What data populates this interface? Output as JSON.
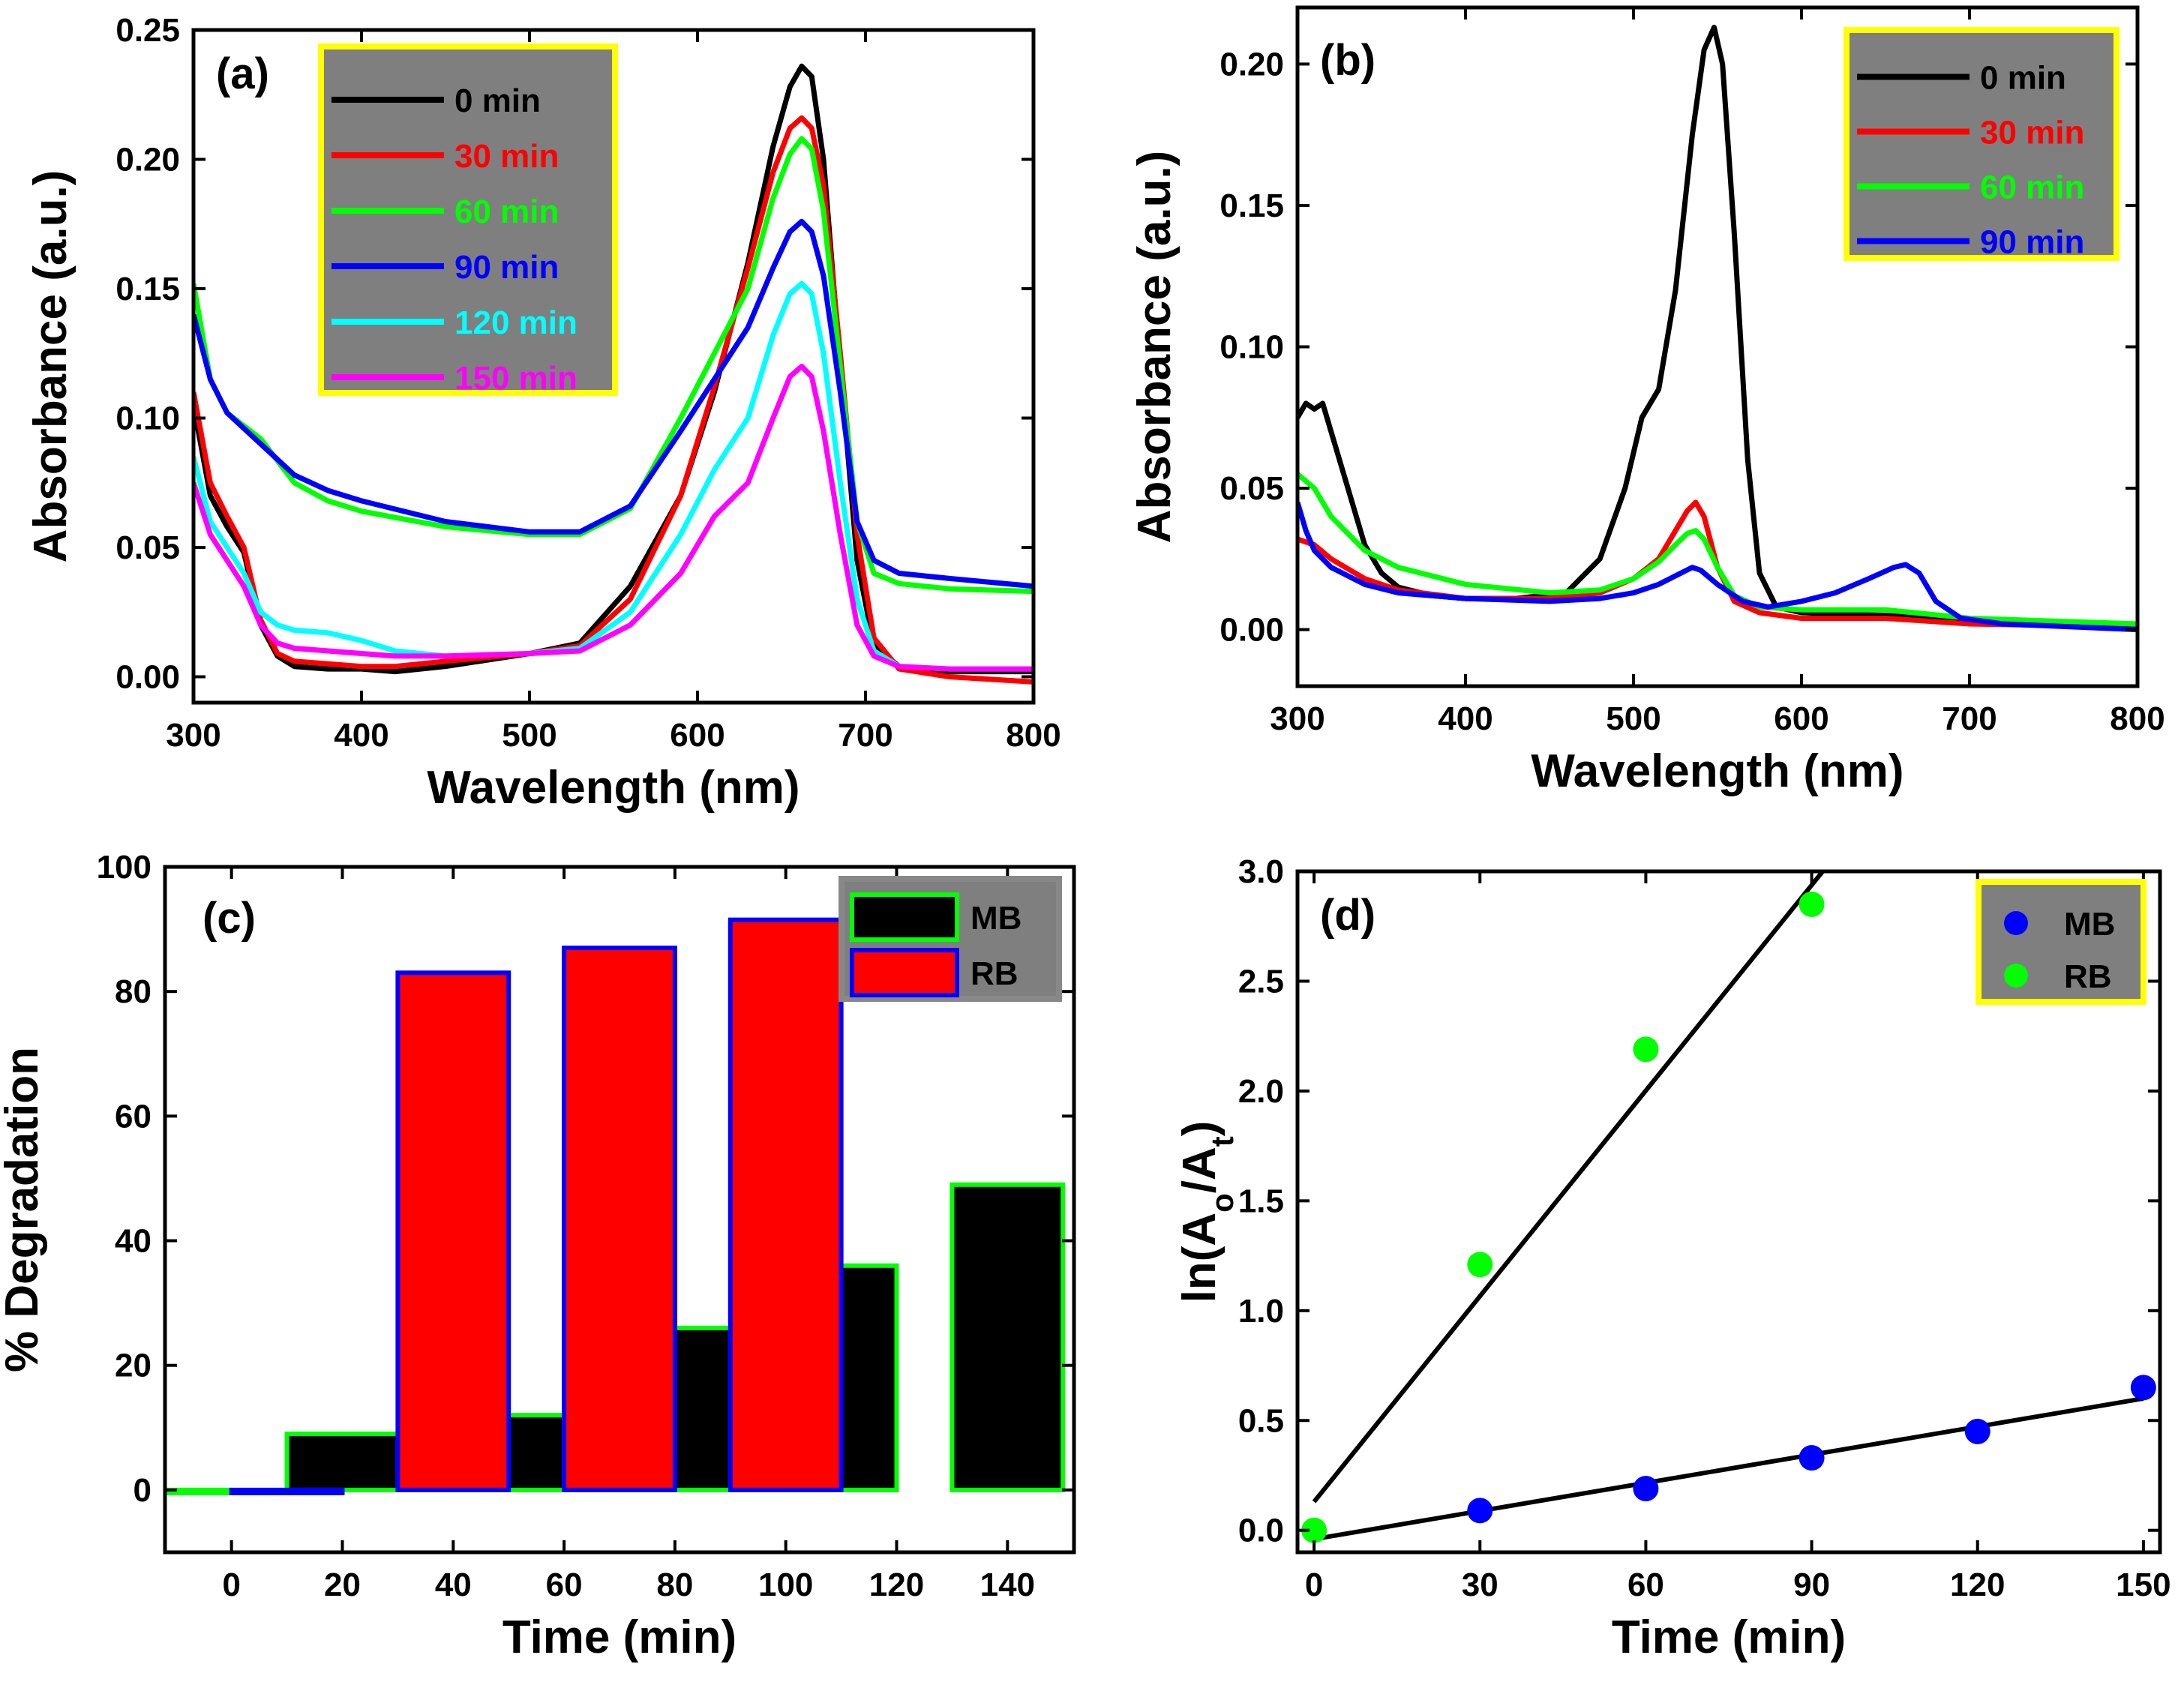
{
  "chart_data": [
    {
      "panel": "(a)",
      "type": "line",
      "xlabel": "Wavelength (nm)",
      "ylabel": "Absorbance (a.u.)",
      "xlim": [
        300,
        800
      ],
      "ylim": [
        -0.01,
        0.25
      ],
      "xticks": [
        "300",
        "400",
        "500",
        "600",
        "700",
        "800"
      ],
      "yticks": [
        "0.00",
        "0.05",
        "0.10",
        "0.15",
        "0.20",
        "0.25"
      ],
      "xtick_values": [
        300,
        400,
        500,
        600,
        700,
        800
      ],
      "ytick_values": [
        0,
        0.05,
        0.1,
        0.15,
        0.2,
        0.25
      ],
      "legend": {
        "position": "top-left",
        "background": "#7f7f7f",
        "border": "#ffff00"
      },
      "series": [
        {
          "name": "0 min",
          "color": "#000000",
          "x": [
            300,
            310,
            320,
            330,
            340,
            350,
            360,
            380,
            400,
            420,
            450,
            500,
            530,
            560,
            590,
            610,
            630,
            645,
            655,
            662,
            668,
            675,
            685,
            695,
            705,
            720,
            750,
            800
          ],
          "y": [
            0.105,
            0.07,
            0.058,
            0.048,
            0.02,
            0.008,
            0.004,
            0.003,
            0.003,
            0.002,
            0.004,
            0.009,
            0.013,
            0.035,
            0.07,
            0.11,
            0.16,
            0.205,
            0.228,
            0.236,
            0.232,
            0.2,
            0.12,
            0.045,
            0.012,
            0.004,
            0.002,
            0.002
          ]
        },
        {
          "name": "30 min",
          "color": "#ff0000",
          "x": [
            300,
            310,
            320,
            330,
            340,
            350,
            360,
            380,
            400,
            420,
            450,
            500,
            530,
            560,
            590,
            610,
            630,
            645,
            655,
            662,
            668,
            675,
            685,
            695,
            705,
            720,
            750,
            800
          ],
          "y": [
            0.11,
            0.075,
            0.062,
            0.05,
            0.022,
            0.009,
            0.006,
            0.005,
            0.004,
            0.004,
            0.006,
            0.009,
            0.012,
            0.03,
            0.07,
            0.112,
            0.158,
            0.195,
            0.212,
            0.216,
            0.212,
            0.19,
            0.125,
            0.055,
            0.015,
            0.003,
            0.0,
            -0.002
          ]
        },
        {
          "name": "60 min",
          "color": "#00ff00",
          "x": [
            300,
            310,
            320,
            340,
            360,
            380,
            400,
            450,
            500,
            530,
            560,
            590,
            610,
            630,
            645,
            655,
            662,
            668,
            675,
            685,
            695,
            705,
            720,
            750,
            800
          ],
          "y": [
            0.152,
            0.115,
            0.102,
            0.092,
            0.075,
            0.068,
            0.064,
            0.058,
            0.055,
            0.055,
            0.065,
            0.1,
            0.125,
            0.15,
            0.185,
            0.202,
            0.208,
            0.204,
            0.18,
            0.12,
            0.06,
            0.04,
            0.036,
            0.034,
            0.033
          ]
        },
        {
          "name": "90 min",
          "color": "#0000ff",
          "x": [
            300,
            310,
            320,
            340,
            360,
            380,
            400,
            450,
            500,
            530,
            560,
            590,
            610,
            630,
            645,
            655,
            662,
            668,
            675,
            685,
            695,
            705,
            720,
            750,
            800
          ],
          "y": [
            0.14,
            0.115,
            0.102,
            0.09,
            0.078,
            0.072,
            0.068,
            0.06,
            0.056,
            0.056,
            0.066,
            0.095,
            0.115,
            0.135,
            0.158,
            0.172,
            0.176,
            0.172,
            0.155,
            0.11,
            0.06,
            0.045,
            0.04,
            0.038,
            0.035
          ]
        },
        {
          "name": "120 min",
          "color": "#00ffff",
          "x": [
            300,
            310,
            320,
            330,
            340,
            350,
            360,
            380,
            400,
            420,
            450,
            500,
            530,
            560,
            590,
            610,
            630,
            645,
            655,
            662,
            668,
            675,
            685,
            695,
            705,
            720,
            750,
            800
          ],
          "y": [
            0.085,
            0.06,
            0.05,
            0.04,
            0.025,
            0.02,
            0.018,
            0.017,
            0.014,
            0.01,
            0.008,
            0.009,
            0.011,
            0.025,
            0.055,
            0.08,
            0.1,
            0.132,
            0.148,
            0.152,
            0.148,
            0.125,
            0.075,
            0.03,
            0.01,
            0.004,
            0.003,
            0.003
          ]
        },
        {
          "name": "150 min",
          "color": "#ff00ff",
          "x": [
            300,
            310,
            320,
            330,
            340,
            350,
            360,
            380,
            400,
            420,
            450,
            500,
            530,
            560,
            590,
            610,
            630,
            645,
            655,
            662,
            668,
            675,
            685,
            695,
            705,
            720,
            750,
            800
          ],
          "y": [
            0.075,
            0.055,
            0.045,
            0.035,
            0.02,
            0.013,
            0.011,
            0.01,
            0.009,
            0.008,
            0.008,
            0.009,
            0.01,
            0.02,
            0.04,
            0.062,
            0.075,
            0.1,
            0.116,
            0.12,
            0.116,
            0.095,
            0.055,
            0.02,
            0.008,
            0.004,
            0.003,
            0.003
          ]
        }
      ]
    },
    {
      "panel": "(b)",
      "type": "line",
      "xlabel": "Wavelength (nm)",
      "ylabel": "Absorbance (a.u.)",
      "xlim": [
        300,
        800
      ],
      "ylim": [
        -0.02,
        0.22
      ],
      "xticks": [
        "300",
        "400",
        "500",
        "600",
        "700",
        "800"
      ],
      "yticks": [
        "0.00",
        "0.05",
        "0.10",
        "0.15",
        "0.20"
      ],
      "xtick_values": [
        300,
        400,
        500,
        600,
        700,
        800
      ],
      "ytick_values": [
        0,
        0.05,
        0.1,
        0.15,
        0.2
      ],
      "legend": {
        "position": "top-right",
        "background": "#7f7f7f",
        "border": "#ffff00"
      },
      "series": [
        {
          "name": "0 min",
          "color": "#000000",
          "x": [
            300,
            305,
            310,
            315,
            320,
            330,
            340,
            350,
            360,
            380,
            400,
            430,
            460,
            480,
            495,
            505,
            515,
            525,
            535,
            542,
            548,
            553,
            560,
            568,
            575,
            585,
            600,
            650,
            700,
            800
          ],
          "y": [
            0.075,
            0.08,
            0.078,
            0.08,
            0.07,
            0.05,
            0.03,
            0.02,
            0.015,
            0.012,
            0.011,
            0.011,
            0.013,
            0.025,
            0.05,
            0.075,
            0.085,
            0.12,
            0.175,
            0.205,
            0.213,
            0.2,
            0.14,
            0.06,
            0.02,
            0.008,
            0.006,
            0.005,
            0.003,
            0.001
          ]
        },
        {
          "name": "30 min",
          "color": "#ff0000",
          "x": [
            300,
            310,
            320,
            340,
            360,
            400,
            450,
            480,
            500,
            515,
            525,
            532,
            537,
            542,
            550,
            560,
            575,
            600,
            650,
            700,
            800
          ],
          "y": [
            0.032,
            0.03,
            0.025,
            0.018,
            0.014,
            0.011,
            0.011,
            0.013,
            0.018,
            0.025,
            0.035,
            0.042,
            0.045,
            0.04,
            0.022,
            0.01,
            0.006,
            0.004,
            0.004,
            0.002,
            0.001
          ]
        },
        {
          "name": "60 min",
          "color": "#00ff00",
          "x": [
            300,
            310,
            320,
            340,
            360,
            400,
            450,
            480,
            500,
            515,
            525,
            532,
            537,
            542,
            550,
            560,
            575,
            600,
            650,
            700,
            800
          ],
          "y": [
            0.055,
            0.05,
            0.04,
            0.028,
            0.022,
            0.016,
            0.013,
            0.014,
            0.018,
            0.024,
            0.03,
            0.034,
            0.035,
            0.032,
            0.022,
            0.012,
            0.008,
            0.007,
            0.007,
            0.004,
            0.002
          ]
        },
        {
          "name": "90 min",
          "color": "#0000ff",
          "x": [
            300,
            305,
            310,
            320,
            340,
            360,
            400,
            450,
            480,
            500,
            515,
            525,
            535,
            540,
            550,
            565,
            580,
            600,
            620,
            640,
            655,
            662,
            670,
            680,
            695,
            720,
            800
          ],
          "y": [
            0.045,
            0.035,
            0.028,
            0.022,
            0.016,
            0.013,
            0.011,
            0.01,
            0.011,
            0.013,
            0.016,
            0.019,
            0.022,
            0.021,
            0.016,
            0.01,
            0.008,
            0.01,
            0.013,
            0.018,
            0.022,
            0.023,
            0.02,
            0.01,
            0.004,
            0.002,
            0.0
          ]
        }
      ]
    },
    {
      "panel": "(c)",
      "type": "bar",
      "xlabel": "Time (min)",
      "ylabel": "% Degradation",
      "xlim": [
        -12,
        152
      ],
      "ylim": [
        -10,
        100
      ],
      "xticks": [
        "0",
        "20",
        "40",
        "60",
        "80",
        "100",
        "120",
        "140"
      ],
      "yticks": [
        "0",
        "20",
        "40",
        "60",
        "80",
        "100"
      ],
      "xtick_values": [
        0,
        20,
        40,
        60,
        80,
        100,
        120,
        140
      ],
      "ytick_values": [
        0,
        20,
        40,
        60,
        80,
        100
      ],
      "legend": {
        "position": "top-right",
        "background": "#7f7f7f",
        "border": "#888888"
      },
      "series": [
        {
          "name": "MB",
          "color": "#000000",
          "edge": "#00ff00",
          "x": [
            0,
            30,
            60,
            90,
            120,
            150
          ],
          "values": [
            0,
            9,
            12,
            26,
            36,
            49
          ]
        },
        {
          "name": "RB",
          "color": "#ff0000",
          "edge": "#0000ff",
          "x": [
            0,
            30,
            60,
            90
          ],
          "values": [
            0,
            83,
            87,
            91.5
          ]
        }
      ]
    },
    {
      "panel": "(d)",
      "type": "scatter",
      "xlabel": "Time (min)",
      "ylabel": "ln(A",
      "ylabel_sub1": "o",
      "ylabel_mid": "/A",
      "ylabel_sub2": "t",
      "ylabel_end": ")",
      "xlim": [
        -3,
        153
      ],
      "ylim": [
        -0.1,
        3.0
      ],
      "xticks": [
        "0",
        "30",
        "60",
        "90",
        "120",
        "150"
      ],
      "yticks": [
        "0.0",
        "0.5",
        "1.0",
        "1.5",
        "2.0",
        "2.5",
        "3.0"
      ],
      "xtick_values": [
        0,
        30,
        60,
        90,
        120,
        150
      ],
      "ytick_values": [
        0,
        0.5,
        1.0,
        1.5,
        2.0,
        2.5,
        3.0
      ],
      "legend": {
        "position": "top-right",
        "background": "#7f7f7f",
        "border": "#ffff00"
      },
      "series": [
        {
          "name": "MB",
          "color": "#0000ff",
          "x": [
            30,
            60,
            90,
            120,
            150
          ],
          "y": [
            0.09,
            0.19,
            0.33,
            0.45,
            0.65
          ]
        },
        {
          "name": "RB",
          "color": "#00ff00",
          "x": [
            0,
            30,
            60,
            90
          ],
          "y": [
            0.0,
            1.21,
            2.19,
            2.85
          ]
        }
      ],
      "fits": [
        {
          "name": "MB fit",
          "color": "#000000",
          "x": [
            0,
            150
          ],
          "y": [
            -0.04,
            0.6
          ]
        },
        {
          "name": "RB fit",
          "color": "#000000",
          "x": [
            0,
            92
          ],
          "y": [
            0.13,
            3.0
          ]
        }
      ]
    }
  ]
}
